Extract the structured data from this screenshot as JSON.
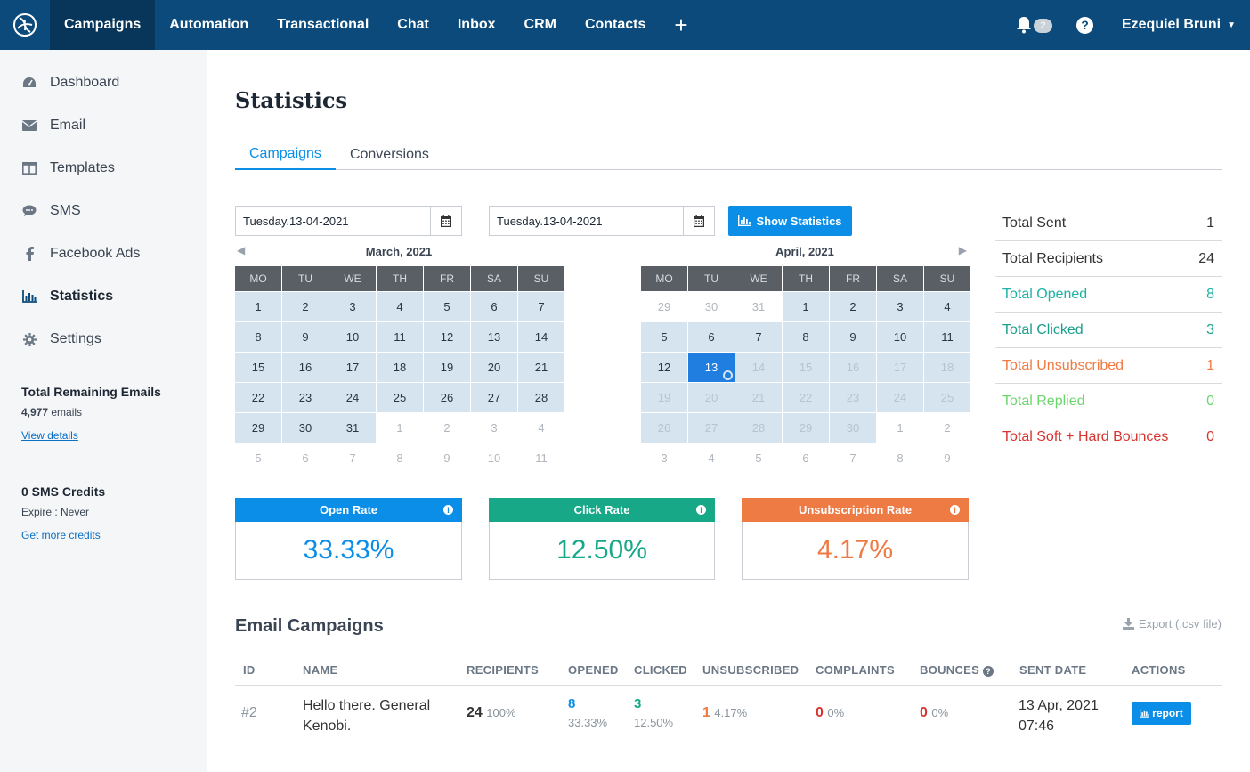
{
  "nav": {
    "items": [
      {
        "label": "Campaigns"
      },
      {
        "label": "Automation"
      },
      {
        "label": "Transactional"
      },
      {
        "label": "Chat"
      },
      {
        "label": "Inbox"
      },
      {
        "label": "CRM"
      },
      {
        "label": "Contacts"
      }
    ],
    "plus": "+",
    "notifications": "2",
    "help": "?",
    "user": "Ezequiel Bruni"
  },
  "sidebar": {
    "items": [
      {
        "label": "Dashboard",
        "icon": "dashboard-icon"
      },
      {
        "label": "Email",
        "icon": "envelope-icon"
      },
      {
        "label": "Templates",
        "icon": "template-icon"
      },
      {
        "label": "SMS",
        "icon": "chat-bubble-icon"
      },
      {
        "label": "Facebook Ads",
        "icon": "facebook-icon"
      },
      {
        "label": "Statistics",
        "icon": "bar-chart-icon"
      },
      {
        "label": "Settings",
        "icon": "gear-icon"
      }
    ],
    "remaining_title": "Total Remaining Emails",
    "remaining_count": "4,977",
    "remaining_unit": " emails",
    "view_details": "View details",
    "sms_title": "0 SMS Credits",
    "sms_expire": "Expire : Never",
    "get_credits": "Get more credits"
  },
  "page": {
    "title": "Statistics",
    "tabs": [
      {
        "label": "Campaigns"
      },
      {
        "label": "Conversions"
      }
    ]
  },
  "filters": {
    "start_date": "Tuesday.13-04-2021",
    "end_date": "Tuesday.13-04-2021",
    "show_button": "Show Statistics"
  },
  "calendars": {
    "weekdays": [
      "MO",
      "TU",
      "WE",
      "TH",
      "FR",
      "SA",
      "SU"
    ],
    "left": {
      "title": "March, 2021",
      "prev_arrow": "◀",
      "days": [
        [
          "1",
          "2",
          "3",
          "4",
          "5",
          "6",
          "7"
        ],
        [
          "8",
          "9",
          "10",
          "11",
          "12",
          "13",
          "14"
        ],
        [
          "15",
          "16",
          "17",
          "18",
          "19",
          "20",
          "21"
        ],
        [
          "22",
          "23",
          "24",
          "25",
          "26",
          "27",
          "28"
        ],
        [
          "29",
          "30",
          "31",
          "1",
          "2",
          "3",
          "4"
        ],
        [
          "5",
          "6",
          "7",
          "8",
          "9",
          "10",
          "11"
        ]
      ]
    },
    "right": {
      "title": "April, 2021",
      "next_arrow": "▶",
      "days": [
        [
          "29",
          "30",
          "31",
          "1",
          "2",
          "3",
          "4"
        ],
        [
          "5",
          "6",
          "7",
          "8",
          "9",
          "10",
          "11"
        ],
        [
          "12",
          "13",
          "14",
          "15",
          "16",
          "17",
          "18"
        ],
        [
          "19",
          "20",
          "21",
          "22",
          "23",
          "24",
          "25"
        ],
        [
          "26",
          "27",
          "28",
          "29",
          "30",
          "1",
          "2"
        ],
        [
          "3",
          "4",
          "5",
          "6",
          "7",
          "8",
          "9"
        ]
      ]
    }
  },
  "totals": [
    {
      "label": "Total Sent",
      "value": "1",
      "color": "#333333"
    },
    {
      "label": "Total Recipients",
      "value": "24",
      "color": "#333333"
    },
    {
      "label": "Total Opened",
      "value": "8",
      "color": "#1bb3a6"
    },
    {
      "label": "Total Clicked",
      "value": "3",
      "color": "#1a9f8c"
    },
    {
      "label": "Total Unsubscribed",
      "value": "1",
      "color": "#f07a42"
    },
    {
      "label": "Total Replied",
      "value": "0",
      "color": "#6dd56d"
    },
    {
      "label": "Total Soft + Hard Bounces",
      "value": "0",
      "color": "#d9332e"
    }
  ],
  "rates": [
    {
      "label": "Open Rate",
      "value": "33.33%",
      "color": "#0b8ee8"
    },
    {
      "label": "Click Rate",
      "value": "12.50%",
      "color": "#16a887"
    },
    {
      "label": "Unsubscription Rate",
      "value": "4.17%",
      "color": "#ee7a44"
    }
  ],
  "campaigns": {
    "title": "Email Campaigns",
    "export": "Export (.csv file)",
    "columns": [
      "ID",
      "NAME",
      "RECIPIENTS",
      "OPENED",
      "CLICKED",
      "UNSUBSCRIBED",
      "COMPLAINTS",
      "BOUNCES",
      "SENT DATE",
      "ACTIONS"
    ],
    "rows": [
      {
        "id": "#2",
        "name_line1": "Hello there. General",
        "name_line2": "Kenobi.",
        "recipients": "24",
        "recipients_pct": "100%",
        "opened": "8",
        "opened_pct": "33.33%",
        "clicked": "3",
        "clicked_pct": "12.50%",
        "unsubscribed": "1",
        "unsubscribed_pct": "4.17%",
        "complaints": "0",
        "complaints_pct": "0%",
        "bounces": "0",
        "bounces_pct": "0%",
        "sent_date": "13 Apr, 2021",
        "sent_time": "07:46",
        "action": "report"
      }
    ]
  }
}
